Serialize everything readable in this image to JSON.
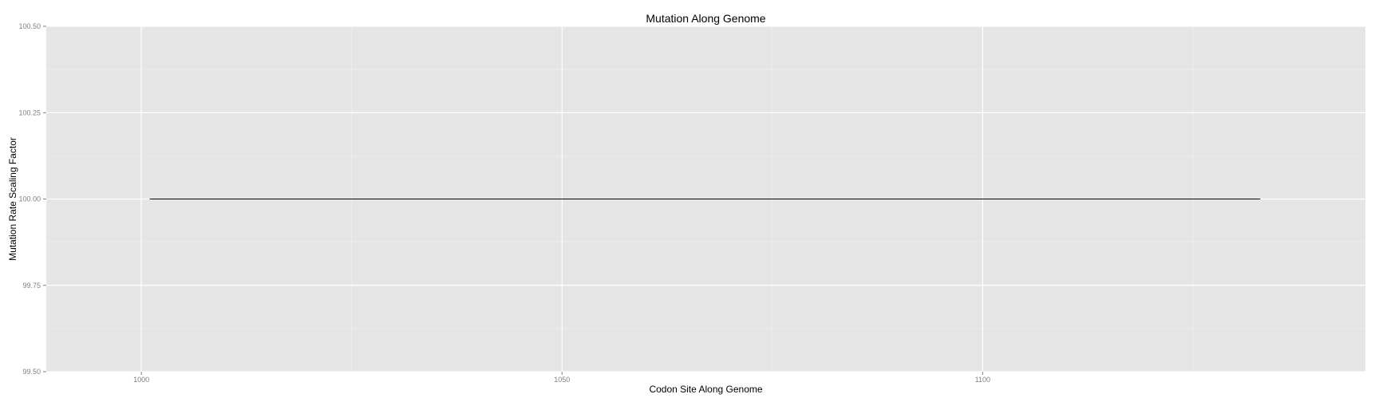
{
  "chart_data": {
    "type": "line",
    "title": "Mutation Along Genome",
    "xlabel": "Codon Site Along Genome",
    "ylabel": "Mutation Rate Scaling Factor",
    "xlim": [
      988.7,
      1145.5
    ],
    "ylim": [
      99.5,
      100.5
    ],
    "x_ticks": [
      1000,
      1050,
      1100
    ],
    "x_tick_labels": [
      "1000",
      "1050",
      "1100"
    ],
    "y_ticks": [
      99.5,
      99.75,
      100.0,
      100.25,
      100.5
    ],
    "y_tick_labels": [
      "99.50",
      "99.75",
      "100.00",
      "100.25",
      "100.50"
    ],
    "grid": true,
    "legend": "none",
    "colors": {
      "panel_background": "#e5e5e5",
      "grid_major": "#ffffff",
      "grid_minor": "#f0f0f0",
      "line": "#000000",
      "tick_label": "#7f7f7f"
    },
    "series": [
      {
        "x": [
          1001,
          1133
        ],
        "y": [
          100.0,
          100.0
        ]
      }
    ]
  }
}
